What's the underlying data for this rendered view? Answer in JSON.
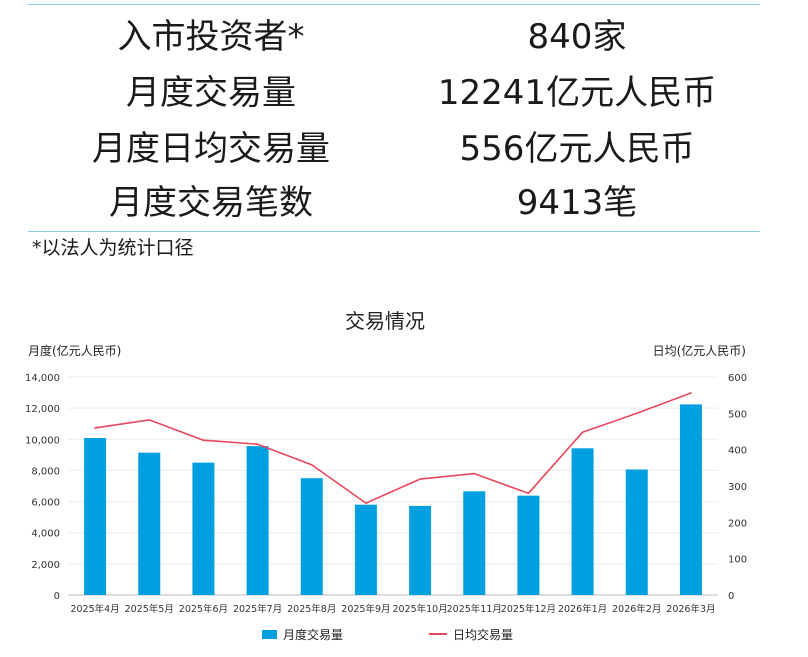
{
  "stats": [
    {
      "label": "入市投资者*",
      "value": "840家"
    },
    {
      "label": "月度交易量",
      "value": "12241亿元人民币"
    },
    {
      "label": "月度日均交易量",
      "value": "556亿元人民币"
    },
    {
      "label": "月度交易笔数",
      "value": "9413笔"
    }
  ],
  "footnote": "*以法人为统计口径",
  "chart_data": {
    "type": "bar",
    "title": "交易情况",
    "ylabel_left": "月度(亿元人民币)",
    "ylabel_right": "日均(亿元人民币)",
    "categories": [
      "2025年4月",
      "2025年5月",
      "2025年6月",
      "2025年7月",
      "2025年8月",
      "2025年9月",
      "2025年10月",
      "2025年11月",
      "2025年12月",
      "2026年1月",
      "2026年2月",
      "2026年3月"
    ],
    "ylim_left": [
      0,
      14000
    ],
    "yticks_left": [
      0,
      2000,
      4000,
      6000,
      8000,
      10000,
      12000,
      14000
    ],
    "ytick_labels_left": [
      "0",
      "2,000",
      "4,000",
      "6,000",
      "8,000",
      "10,000",
      "12,000",
      "14,000"
    ],
    "ylim_right": [
      0,
      600
    ],
    "yticks_right": [
      0,
      100,
      200,
      300,
      400,
      500,
      600
    ],
    "series": [
      {
        "name": "月度交易量",
        "type": "bar",
        "axis": "left",
        "color": "#00a0e0",
        "values": [
          10080,
          9140,
          8500,
          9560,
          7500,
          5800,
          5720,
          6660,
          6380,
          9420,
          8060,
          12241
        ]
      },
      {
        "name": "日均交易量",
        "type": "line",
        "axis": "right",
        "color": "#e8475d",
        "values": [
          460,
          482,
          426,
          415,
          358,
          253,
          319,
          334,
          280,
          448,
          500,
          556
        ]
      }
    ],
    "grid": true,
    "legend": "bottom"
  }
}
